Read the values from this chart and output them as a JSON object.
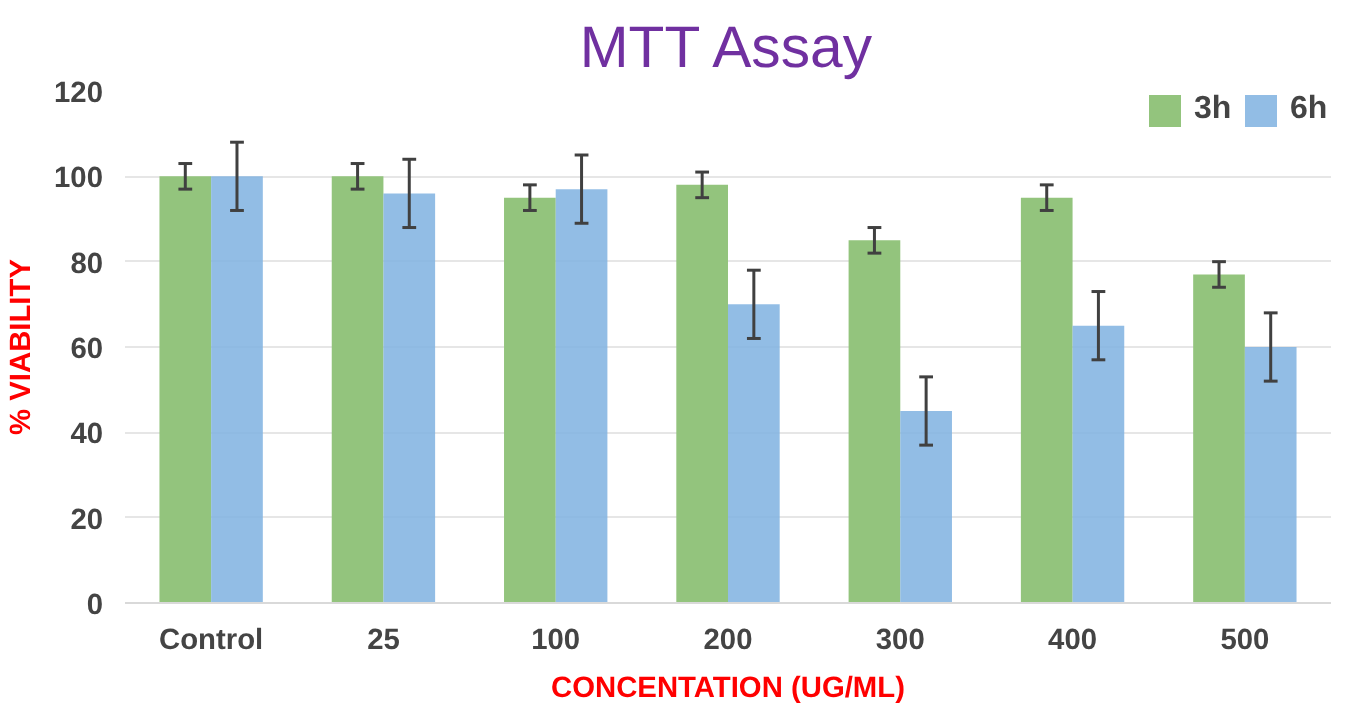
{
  "chart_data": {
    "type": "bar",
    "title": "MTT Assay",
    "xlabel": "CONCENTATION (UG/ML)",
    "ylabel": "% VIABILITY",
    "categories": [
      "Control",
      "25",
      "100",
      "200",
      "300",
      "400",
      "500"
    ],
    "series": [
      {
        "name": "3h",
        "color": "#93c47d",
        "values": [
          100,
          100,
          95,
          98,
          85,
          95,
          77
        ],
        "errors": [
          3,
          3,
          3,
          3,
          3,
          3,
          3
        ]
      },
      {
        "name": "6h",
        "color": "#7fb2e0",
        "values": [
          100,
          96,
          97,
          70,
          45,
          65,
          60
        ],
        "errors": [
          8,
          8,
          8,
          8,
          8,
          8,
          8
        ]
      }
    ],
    "ylim": [
      0,
      120
    ],
    "yticks": [
      0,
      20,
      40,
      60,
      80,
      100,
      120
    ],
    "grid": "y",
    "legend": "top right"
  }
}
